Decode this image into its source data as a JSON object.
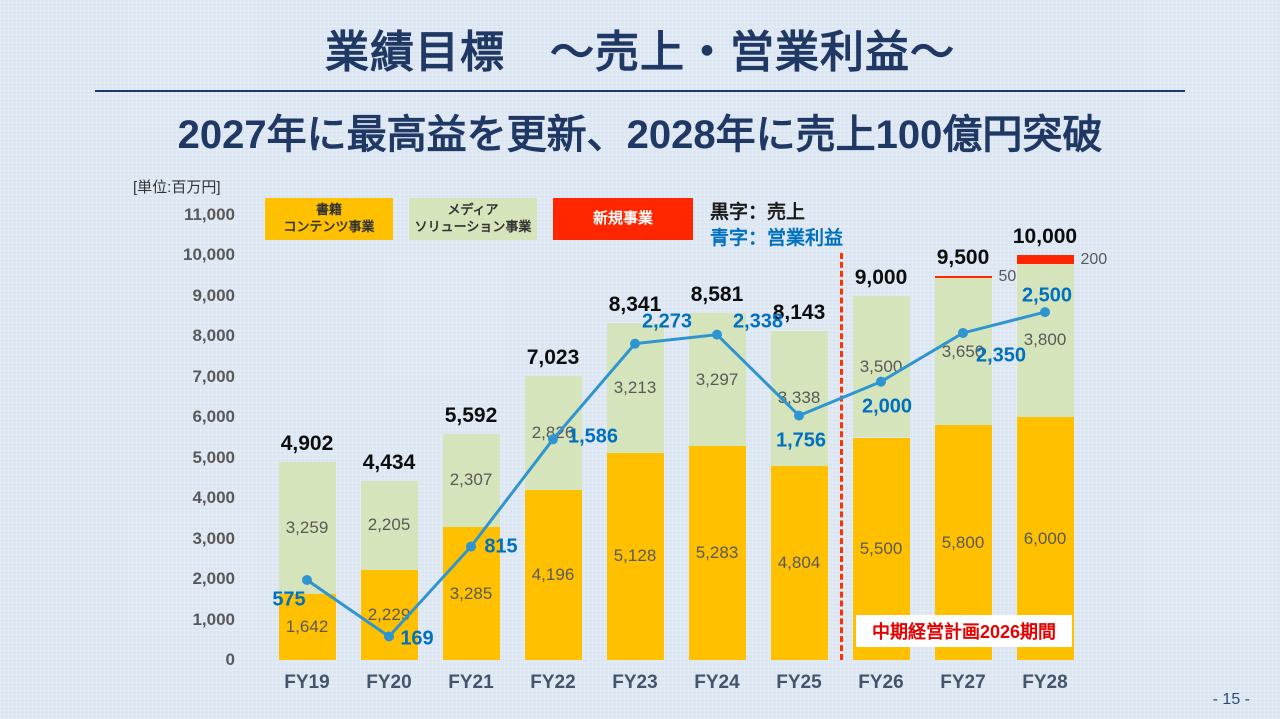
{
  "slide": {
    "title": "業績目標　～売上・営業利益～",
    "subtitle": "2027年に最高益を更新、2028年に売上100億円突破",
    "unit_label": "[単位:百万円]",
    "page_number": "- 15 -"
  },
  "legend": {
    "items": [
      {
        "label": "書籍\nコンテンツ事業",
        "color": "#FFC000",
        "text_color": "#333333"
      },
      {
        "label": "メディア\nソリューション事業",
        "color": "#D6E4BC",
        "text_color": "#333333"
      },
      {
        "label": "新規事業",
        "color": "#FF2600",
        "text_color": "#FFFFFF"
      }
    ],
    "note_sales": "黒字：売上",
    "note_profit": "青字：営業利益"
  },
  "plan_period_label": "中期経営計画2026期間",
  "colors": {
    "title_navy": "#1F3864",
    "profit_blue_label": "#0070C0",
    "profit_line_blue": "#2E95D0",
    "books_orange": "#FFC000",
    "media_green": "#D6E4BC",
    "new_red": "#FF2600",
    "divider_red": "#FF3300",
    "gray_value": "#595959"
  },
  "chart_data": {
    "type": "bar+line",
    "title": "業績目標 売上・営業利益",
    "categories": [
      "FY19",
      "FY20",
      "FY21",
      "FY22",
      "FY23",
      "FY24",
      "FY25",
      "FY26",
      "FY27",
      "FY28"
    ],
    "series": [
      {
        "name": "書籍コンテンツ事業",
        "type": "bar",
        "color": "#FFC000",
        "values": [
          1642,
          2229,
          3285,
          4196,
          5128,
          5283,
          4804,
          5500,
          5800,
          6000
        ]
      },
      {
        "name": "メディアソリューション事業",
        "type": "bar",
        "color": "#D6E4BC",
        "values": [
          3259,
          2205,
          2307,
          2826,
          3213,
          3297,
          3338,
          3500,
          3650,
          3800
        ]
      },
      {
        "name": "新規事業",
        "type": "bar",
        "color": "#FF2600",
        "values": [
          0,
          0,
          0,
          0,
          0,
          0,
          0,
          0,
          50,
          200
        ]
      },
      {
        "name": "営業利益",
        "type": "line",
        "color": "#2E95D0",
        "values": [
          575,
          169,
          815,
          1586,
          2273,
          2338,
          1756,
          2000,
          2350,
          2500
        ]
      }
    ],
    "totals": [
      4902,
      4434,
      5592,
      7023,
      8341,
      8581,
      8143,
      9000,
      9500,
      10000
    ],
    "stacked": true,
    "ylim": [
      0,
      11000
    ],
    "ytick_step": 1000,
    "grid": false,
    "legend_position": "top",
    "plan_period_start_category": "FY26"
  }
}
